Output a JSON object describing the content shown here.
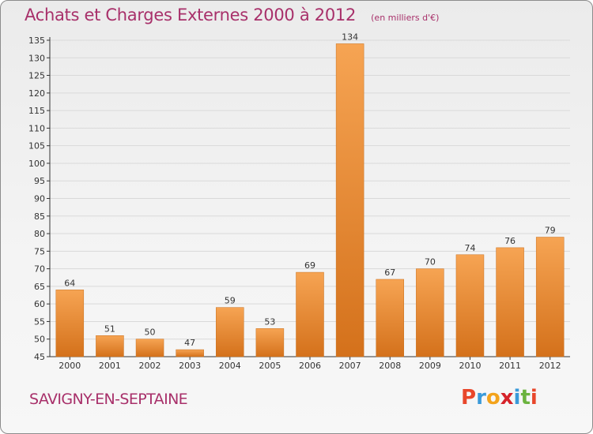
{
  "title": "Achats et Charges Externes 2000 à 2012",
  "subtitle": "(en milliers d'€)",
  "place_name": "SAVIGNY-EN-SEPTAINE",
  "logo": {
    "text": "Proxiti",
    "letters": [
      "P",
      "r",
      "o",
      "x",
      "i",
      "t",
      "i"
    ],
    "colors": [
      "#e8472b",
      "#3a9ad9",
      "#f3a31b",
      "#d6232a",
      "#3a9ad9",
      "#6cb33f",
      "#e8472b"
    ]
  },
  "colors": {
    "title": "#a8306a",
    "bar_light": "#f6a453",
    "bar_dark": "#d4711b",
    "axis": "#333333",
    "grid": "#d9d9d9"
  },
  "chart_data": {
    "type": "bar",
    "title": "Achats et Charges Externes 2000 à 2012",
    "subtitle": "(en milliers d'€)",
    "categories": [
      "2000",
      "2001",
      "2002",
      "2003",
      "2004",
      "2005",
      "2006",
      "2007",
      "2008",
      "2009",
      "2010",
      "2011",
      "2012"
    ],
    "values": [
      64,
      51,
      50,
      47,
      59,
      53,
      69,
      134,
      67,
      70,
      74,
      76,
      79
    ],
    "ylim": [
      45,
      135
    ],
    "yticks": [
      45,
      50,
      55,
      60,
      65,
      70,
      75,
      80,
      85,
      90,
      95,
      100,
      105,
      110,
      115,
      120,
      125,
      130,
      135
    ],
    "xlabel": "",
    "ylabel": "",
    "grid": true,
    "legend": "none"
  }
}
